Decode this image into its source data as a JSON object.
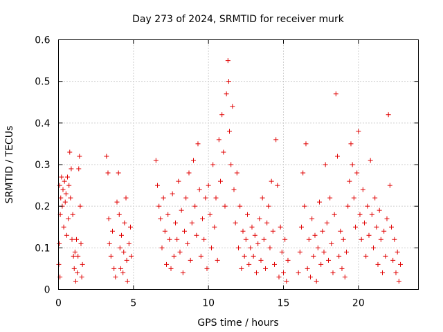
{
  "chart_data": {
    "type": "scatter",
    "title": "Day 273 of 2024, SRMTID for receiver murk",
    "xlabel": "GPS time / hours",
    "ylabel": "SRMTID / TECUs",
    "xlim": [
      0,
      24
    ],
    "ylim": [
      0,
      0.6
    ],
    "xticks": [
      "0",
      "5",
      "10",
      "15",
      "20"
    ],
    "yticks": [
      "0",
      "0.1",
      "0.2",
      "0.3",
      "0.4",
      "0.5",
      "0.6"
    ],
    "grid": true,
    "marker": "plus",
    "color": "#e00000",
    "series": [
      {
        "points": [
          [
            0.02,
            0.06
          ],
          [
            0.05,
            0.11
          ],
          [
            0.08,
            0.25
          ],
          [
            0.1,
            0.03
          ],
          [
            0.12,
            0.18
          ],
          [
            0.15,
            0.22
          ],
          [
            0.2,
            0.27
          ],
          [
            0.25,
            0.2
          ],
          [
            0.3,
            0.24
          ],
          [
            0.35,
            0.15
          ],
          [
            0.4,
            0.26
          ],
          [
            0.45,
            0.21
          ],
          [
            0.5,
            0.23
          ],
          [
            0.55,
            0.13
          ],
          [
            0.6,
            0.27
          ],
          [
            0.65,
            0.17
          ],
          [
            0.7,
            0.25
          ],
          [
            0.75,
            0.33
          ],
          [
            0.8,
            0.22
          ],
          [
            0.85,
            0.29
          ],
          [
            0.9,
            0.12
          ],
          [
            0.95,
            0.18
          ],
          [
            1.0,
            0.08
          ],
          [
            1.05,
            0.05
          ],
          [
            1.1,
            0.09
          ],
          [
            1.15,
            0.02
          ],
          [
            1.2,
            0.12
          ],
          [
            1.25,
            0.04
          ],
          [
            1.3,
            0.08
          ],
          [
            1.35,
            0.29
          ],
          [
            1.4,
            0.32
          ],
          [
            1.45,
            0.2
          ],
          [
            1.5,
            0.11
          ],
          [
            1.55,
            0.03
          ],
          [
            1.6,
            0.06
          ],
          [
            3.2,
            0.32
          ],
          [
            3.3,
            0.28
          ],
          [
            3.35,
            0.17
          ],
          [
            3.4,
            0.11
          ],
          [
            3.5,
            0.08
          ],
          [
            3.6,
            0.14
          ],
          [
            3.7,
            0.05
          ],
          [
            3.8,
            0.03
          ],
          [
            3.9,
            0.21
          ],
          [
            4.0,
            0.28
          ],
          [
            4.05,
            0.18
          ],
          [
            4.1,
            0.1
          ],
          [
            4.15,
            0.05
          ],
          [
            4.2,
            0.13
          ],
          [
            4.3,
            0.04
          ],
          [
            4.35,
            0.09
          ],
          [
            4.4,
            0.16
          ],
          [
            4.5,
            0.22
          ],
          [
            4.55,
            0.07
          ],
          [
            4.6,
            0.02
          ],
          [
            4.7,
            0.11
          ],
          [
            4.8,
            0.15
          ],
          [
            4.85,
            0.08
          ],
          [
            6.5,
            0.31
          ],
          [
            6.6,
            0.25
          ],
          [
            6.7,
            0.2
          ],
          [
            6.8,
            0.17
          ],
          [
            6.9,
            0.1
          ],
          [
            7.0,
            0.22
          ],
          [
            7.1,
            0.14
          ],
          [
            7.2,
            0.06
          ],
          [
            7.3,
            0.18
          ],
          [
            7.4,
            0.12
          ],
          [
            7.5,
            0.05
          ],
          [
            7.6,
            0.23
          ],
          [
            7.7,
            0.08
          ],
          [
            7.8,
            0.16
          ],
          [
            7.9,
            0.12
          ],
          [
            8.0,
            0.26
          ],
          [
            8.1,
            0.09
          ],
          [
            8.2,
            0.19
          ],
          [
            8.3,
            0.04
          ],
          [
            8.4,
            0.14
          ],
          [
            8.5,
            0.22
          ],
          [
            8.6,
            0.11
          ],
          [
            8.7,
            0.28
          ],
          [
            8.8,
            0.07
          ],
          [
            8.9,
            0.16
          ],
          [
            9.0,
            0.31
          ],
          [
            9.1,
            0.2
          ],
          [
            9.2,
            0.13
          ],
          [
            9.3,
            0.35
          ],
          [
            9.4,
            0.24
          ],
          [
            9.5,
            0.08
          ],
          [
            9.6,
            0.17
          ],
          [
            9.7,
            0.12
          ],
          [
            9.8,
            0.22
          ],
          [
            9.9,
            0.05
          ],
          [
            10.0,
            0.25
          ],
          [
            10.1,
            0.18
          ],
          [
            10.2,
            0.1
          ],
          [
            10.3,
            0.3
          ],
          [
            10.4,
            0.15
          ],
          [
            10.5,
            0.22
          ],
          [
            10.6,
            0.07
          ],
          [
            10.7,
            0.36
          ],
          [
            10.8,
            0.26
          ],
          [
            10.9,
            0.42
          ],
          [
            11.0,
            0.33
          ],
          [
            11.1,
            0.2
          ],
          [
            11.2,
            0.47
          ],
          [
            11.3,
            0.55
          ],
          [
            11.35,
            0.5
          ],
          [
            11.4,
            0.38
          ],
          [
            11.5,
            0.3
          ],
          [
            11.6,
            0.44
          ],
          [
            11.7,
            0.24
          ],
          [
            11.8,
            0.16
          ],
          [
            11.9,
            0.28
          ],
          [
            12.0,
            0.1
          ],
          [
            12.1,
            0.2
          ],
          [
            12.2,
            0.05
          ],
          [
            12.3,
            0.14
          ],
          [
            12.4,
            0.08
          ],
          [
            12.5,
            0.12
          ],
          [
            12.6,
            0.18
          ],
          [
            12.7,
            0.06
          ],
          [
            12.8,
            0.1
          ],
          [
            12.9,
            0.15
          ],
          [
            13.0,
            0.08
          ],
          [
            13.1,
            0.13
          ],
          [
            13.2,
            0.04
          ],
          [
            13.3,
            0.11
          ],
          [
            13.4,
            0.17
          ],
          [
            13.5,
            0.07
          ],
          [
            13.6,
            0.22
          ],
          [
            13.7,
            0.12
          ],
          [
            13.8,
            0.05
          ],
          [
            13.9,
            0.16
          ],
          [
            14.0,
            0.2
          ],
          [
            14.1,
            0.1
          ],
          [
            14.2,
            0.26
          ],
          [
            14.3,
            0.14
          ],
          [
            14.4,
            0.06
          ],
          [
            14.5,
            0.36
          ],
          [
            14.6,
            0.25
          ],
          [
            14.7,
            0.03
          ],
          [
            14.8,
            0.15
          ],
          [
            14.9,
            0.09
          ],
          [
            15.0,
            0.04
          ],
          [
            15.1,
            0.12
          ],
          [
            15.2,
            0.02
          ],
          [
            15.3,
            0.07
          ],
          [
            16.0,
            0.04
          ],
          [
            16.1,
            0.09
          ],
          [
            16.2,
            0.15
          ],
          [
            16.3,
            0.28
          ],
          [
            16.4,
            0.2
          ],
          [
            16.5,
            0.35
          ],
          [
            16.6,
            0.05
          ],
          [
            16.7,
            0.12
          ],
          [
            16.8,
            0.03
          ],
          [
            16.9,
            0.17
          ],
          [
            17.0,
            0.08
          ],
          [
            17.1,
            0.13
          ],
          [
            17.2,
            0.02
          ],
          [
            17.3,
            0.1
          ],
          [
            17.4,
            0.21
          ],
          [
            17.5,
            0.06
          ],
          [
            17.6,
            0.14
          ],
          [
            17.7,
            0.09
          ],
          [
            17.8,
            0.3
          ],
          [
            17.9,
            0.16
          ],
          [
            18.0,
            0.07
          ],
          [
            18.1,
            0.22
          ],
          [
            18.2,
            0.11
          ],
          [
            18.3,
            0.04
          ],
          [
            18.4,
            0.18
          ],
          [
            18.5,
            0.47
          ],
          [
            18.6,
            0.32
          ],
          [
            18.7,
            0.08
          ],
          [
            18.8,
            0.14
          ],
          [
            18.9,
            0.05
          ],
          [
            19.0,
            0.12
          ],
          [
            19.1,
            0.03
          ],
          [
            19.2,
            0.09
          ],
          [
            19.3,
            0.2
          ],
          [
            19.4,
            0.26
          ],
          [
            19.5,
            0.35
          ],
          [
            19.6,
            0.3
          ],
          [
            19.7,
            0.22
          ],
          [
            19.8,
            0.15
          ],
          [
            19.9,
            0.28
          ],
          [
            20.0,
            0.38
          ],
          [
            20.1,
            0.18
          ],
          [
            20.2,
            0.12
          ],
          [
            20.3,
            0.24
          ],
          [
            20.4,
            0.16
          ],
          [
            20.5,
            0.08
          ],
          [
            20.6,
            0.2
          ],
          [
            20.7,
            0.13
          ],
          [
            20.8,
            0.31
          ],
          [
            20.9,
            0.18
          ],
          [
            21.0,
            0.1
          ],
          [
            21.1,
            0.22
          ],
          [
            21.2,
            0.15
          ],
          [
            21.3,
            0.06
          ],
          [
            21.4,
            0.19
          ],
          [
            21.5,
            0.12
          ],
          [
            21.6,
            0.04
          ],
          [
            21.7,
            0.14
          ],
          [
            21.8,
            0.08
          ],
          [
            21.9,
            0.17
          ],
          [
            22.0,
            0.42
          ],
          [
            22.1,
            0.25
          ],
          [
            22.2,
            0.15
          ],
          [
            22.3,
            0.07
          ],
          [
            22.4,
            0.12
          ],
          [
            22.5,
            0.04
          ],
          [
            22.6,
            0.09
          ],
          [
            22.7,
            0.02
          ],
          [
            22.8,
            0.06
          ]
        ]
      }
    ]
  }
}
